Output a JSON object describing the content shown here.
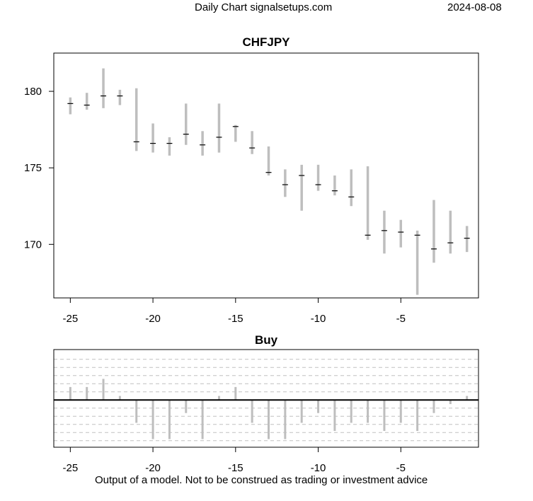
{
  "header": {
    "title": "Daily Chart signalsetups.com",
    "date": "2024-08-08"
  },
  "footer": {
    "note": "Output of a model. Not to be construed as trading or investment advice"
  },
  "chart_data": [
    {
      "type": "ohlc",
      "title": "CHFJPY",
      "xlabel": "",
      "ylabel": "",
      "x_ticks": [
        -25,
        -20,
        -15,
        -10,
        -5
      ],
      "y_ticks": [
        170,
        175,
        180
      ],
      "xlim": [
        -26,
        -0.3
      ],
      "ylim": [
        166.5,
        182.5
      ],
      "grid": false,
      "bar_color": "#bebebe",
      "marker_color": "#000000",
      "x": [
        -25,
        -24,
        -23,
        -22,
        -21,
        -20,
        -19,
        -18,
        -17,
        -16,
        -15,
        -14,
        -13,
        -12,
        -11,
        -10,
        -9,
        -8,
        -7,
        -6,
        -5,
        -4,
        -3,
        -2,
        -1
      ],
      "high": [
        179.6,
        179.9,
        181.5,
        180.1,
        180.2,
        177.9,
        177.0,
        179.2,
        177.4,
        179.2,
        177.8,
        177.4,
        176.4,
        174.9,
        175.2,
        175.2,
        174.5,
        174.9,
        175.1,
        172.2,
        171.6,
        170.9,
        172.9,
        172.2,
        171.2
      ],
      "low": [
        178.5,
        178.8,
        178.9,
        179.1,
        176.1,
        176.0,
        175.8,
        176.5,
        175.8,
        176.0,
        176.7,
        175.9,
        174.5,
        173.1,
        172.2,
        173.5,
        173.2,
        172.5,
        170.3,
        169.4,
        169.8,
        166.7,
        168.8,
        169.4,
        169.5
      ],
      "open": [
        179.2,
        179.1,
        179.7,
        179.7,
        176.7,
        176.6,
        176.6,
        177.2,
        176.5,
        177.0,
        177.7,
        176.3,
        174.7,
        173.9,
        174.5,
        173.9,
        173.5,
        173.1,
        170.6,
        170.9,
        170.8,
        170.6,
        169.7,
        170.1,
        170.4
      ],
      "close": [
        179.2,
        179.1,
        179.7,
        179.7,
        176.7,
        176.6,
        176.6,
        177.2,
        176.5,
        177.0,
        177.7,
        176.3,
        174.7,
        173.9,
        174.5,
        173.9,
        173.5,
        173.1,
        170.6,
        170.9,
        170.8,
        170.6,
        169.7,
        170.1,
        170.4
      ]
    },
    {
      "type": "bar",
      "title": "Buy",
      "xlabel": "",
      "ylabel": "",
      "x_ticks": [
        -25,
        -20,
        -15,
        -10,
        -5
      ],
      "xlim": [
        -26,
        -0.3
      ],
      "ylim": [
        -5.8,
        6.2
      ],
      "grid": true,
      "grid_lines": [
        -5,
        -4,
        -3,
        -2,
        -1,
        1,
        2,
        3,
        4,
        5
      ],
      "baseline": 0,
      "bar_color": "#bebebe",
      "x": [
        -25,
        -24,
        -23,
        -22,
        -21,
        -20,
        -19,
        -18,
        -17,
        -16,
        -15,
        -14,
        -13,
        -12,
        -11,
        -10,
        -9,
        -8,
        -7,
        -6,
        -5,
        -4,
        -3,
        -2,
        -1
      ],
      "values": [
        1.6,
        1.6,
        2.6,
        0.5,
        -2.8,
        -4.8,
        -4.8,
        -1.6,
        -4.8,
        0.5,
        1.6,
        -2.8,
        -4.8,
        -4.8,
        -2.8,
        -1.6,
        -3.8,
        -2.8,
        -2.8,
        -3.8,
        -2.8,
        -3.8,
        -1.6,
        -0.5,
        0.5
      ]
    }
  ]
}
